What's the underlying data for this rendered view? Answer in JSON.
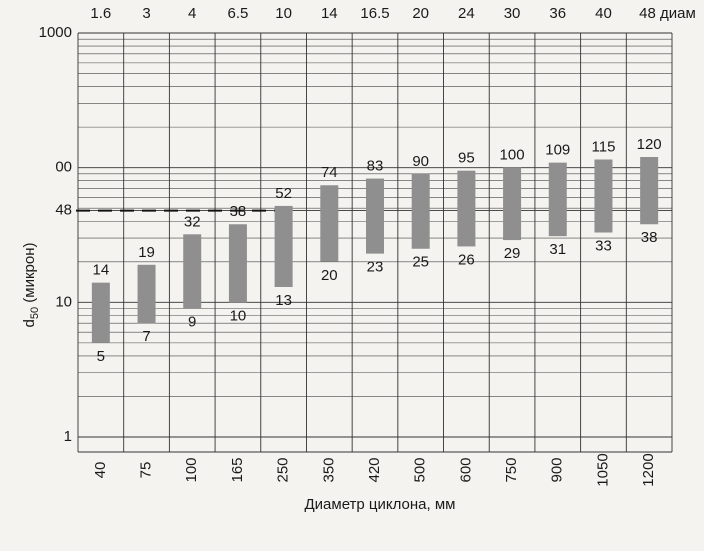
{
  "chart_data": {
    "type": "range-bar",
    "top_labels": [
      "1.6",
      "3",
      "4",
      "6.5",
      "10",
      "14",
      "16.5",
      "20",
      "24",
      "30",
      "36",
      "40",
      "48 диам"
    ],
    "categories": [
      "40",
      "75",
      "100",
      "165",
      "250",
      "350",
      "420",
      "500",
      "600",
      "750",
      "900",
      "1050",
      "1200"
    ],
    "series": [
      {
        "name": "low",
        "values": [
          5,
          7,
          9,
          10,
          13,
          20,
          23,
          25,
          26,
          29,
          31,
          33,
          38
        ]
      },
      {
        "name": "high",
        "values": [
          14,
          19,
          32,
          38,
          52,
          74,
          83,
          90,
          95,
          100,
          109,
          115,
          120
        ]
      }
    ],
    "color": "#8f8f8f",
    "ylabel": {
      "main": "d",
      "sub": "50",
      "rest": " (микрон)"
    },
    "xlabel": "Диаметр циклона, мм",
    "log_y": true,
    "ylim": [
      1,
      1000
    ],
    "yticks": [
      1,
      10,
      {
        "value": 48,
        "label": "48"
      },
      {
        "value": 100,
        "label": "00"
      },
      1000
    ],
    "reference_line": 48,
    "grid": true
  }
}
